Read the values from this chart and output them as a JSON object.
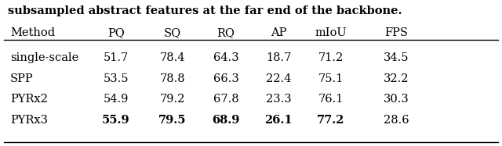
{
  "caption": "subsampled abstract features at the far end of the backbone.",
  "columns": [
    "Method",
    "PQ",
    "SQ",
    "RQ",
    "AP",
    "mIoU",
    "FPS"
  ],
  "rows": [
    {
      "method": "single-scale",
      "PQ": "51.7",
      "SQ": "78.4",
      "RQ": "64.3",
      "AP": "18.7",
      "mIoU": "71.2",
      "FPS": "34.5",
      "bold": []
    },
    {
      "method": "SPP",
      "PQ": "53.5",
      "SQ": "78.8",
      "RQ": "66.3",
      "AP": "22.4",
      "mIoU": "75.1",
      "FPS": "32.2",
      "bold": []
    },
    {
      "method": "PYRx2",
      "PQ": "54.9",
      "SQ": "79.2",
      "RQ": "67.8",
      "AP": "23.3",
      "mIoU": "76.1",
      "FPS": "30.3",
      "bold": []
    },
    {
      "method": "PYRx3",
      "PQ": "55.9",
      "SQ": "79.5",
      "RQ": "68.9",
      "AP": "26.1",
      "mIoU": "77.2",
      "FPS": "28.6",
      "bold": [
        "PQ",
        "SQ",
        "RQ",
        "AP",
        "mIoU"
      ]
    }
  ],
  "col_x_inches": [
    0.13,
    1.48,
    2.2,
    2.88,
    3.55,
    4.22,
    5.05
  ],
  "col_align": [
    "left",
    "center",
    "center",
    "center",
    "center",
    "center",
    "center"
  ],
  "background_color": "#ffffff",
  "text_color": "#000000",
  "font_size": 10.5,
  "caption_font_size": 10.5
}
